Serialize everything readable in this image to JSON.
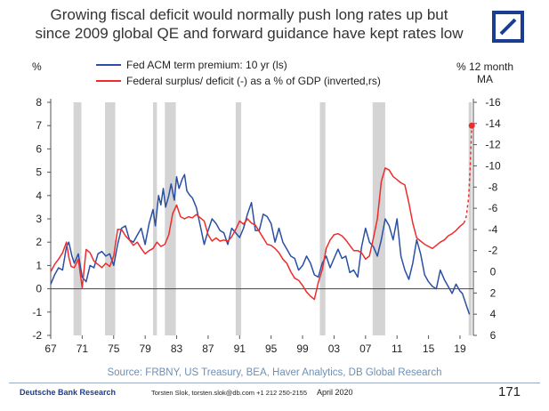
{
  "title_line1": "Growing fiscal deficit would normally push long rates up but",
  "title_line2": "since 2009 global QE and forward guidance have kept rates low",
  "logo_icon": "deutsche-bank-logo",
  "colors": {
    "blue": "#2b4fa3",
    "red": "#ef2b2b",
    "recession": "#d4d4d4",
    "logo": "#1a3d8f"
  },
  "source": "Source:  FRBNY, US Treasury, BEA, Haver Analytics, DB Global Research",
  "footer": {
    "brand": "Deutsche Bank Research",
    "contact": "Torsten Slok, torsten.slok@db.com  +1 212 250-2155",
    "date": "April 2020",
    "page": "171"
  },
  "chart_data": {
    "type": "line",
    "x_tick_labels": [
      "67",
      "71",
      "75",
      "79",
      "83",
      "87",
      "91",
      "95",
      "99",
      "03",
      "07",
      "11",
      "15",
      "19"
    ],
    "xlim": [
      1967,
      2020.7
    ],
    "left_axis": {
      "unit": "%",
      "ylim": [
        -2,
        8
      ],
      "ticks": [
        8,
        7,
        6,
        5,
        4,
        3,
        2,
        1,
        0,
        -1,
        -2
      ]
    },
    "right_axis": {
      "unit_line1": "% 12 month",
      "unit_line2": "MA",
      "inverted": true,
      "ylim": [
        6,
        -16
      ],
      "ticks": [
        -16,
        -14,
        -12,
        -10,
        -8,
        -6,
        -4,
        -2,
        0,
        2,
        4,
        6
      ]
    },
    "legend_position": "top",
    "recessions": [
      [
        1969.9,
        1970.9
      ],
      [
        1973.9,
        1975.2
      ],
      [
        1980.0,
        1980.5
      ],
      [
        1981.5,
        1982.9
      ],
      [
        1990.5,
        1991.2
      ],
      [
        2001.2,
        2001.9
      ],
      [
        2007.9,
        2009.5
      ],
      [
        2020.1,
        2020.5
      ]
    ],
    "series": [
      {
        "name": "Fed ACM term premium: 10 yr (ls)",
        "axis": "left",
        "color": "#2b4fa3",
        "x": [
          1967,
          1967.5,
          1968,
          1968.5,
          1969,
          1969.3,
          1969.7,
          1970,
          1970.5,
          1971,
          1971.5,
          1972,
          1972.5,
          1973,
          1973.5,
          1974,
          1974.5,
          1975,
          1975.5,
          1976,
          1976.5,
          1977,
          1977.5,
          1978,
          1978.5,
          1979,
          1979.5,
          1980,
          1980.3,
          1980.7,
          1981,
          1981.3,
          1981.6,
          1982,
          1982.3,
          1982.7,
          1983,
          1983.3,
          1983.7,
          1984,
          1984.3,
          1984.7,
          1985,
          1985.5,
          1986,
          1986.5,
          1987,
          1987.5,
          1988,
          1988.5,
          1989,
          1989.5,
          1990,
          1990.5,
          1991,
          1991.5,
          1992,
          1992.5,
          1993,
          1993.5,
          1994,
          1994.5,
          1995,
          1995.5,
          1996,
          1996.5,
          1997,
          1997.5,
          1998,
          1998.5,
          1999,
          1999.5,
          2000,
          2000.5,
          2001,
          2001.5,
          2002,
          2002.5,
          2003,
          2003.5,
          2004,
          2004.5,
          2005,
          2005.5,
          2006,
          2006.5,
          2007,
          2007.5,
          2008,
          2008.5,
          2009,
          2009.5,
          2010,
          2010.5,
          2011,
          2011.5,
          2012,
          2012.5,
          2013,
          2013.5,
          2014,
          2014.5,
          2015,
          2015.5,
          2016,
          2016.5,
          2017,
          2017.5,
          2018,
          2018.5,
          2019,
          2019.3,
          2019.6,
          2019.9,
          2020.2
        ],
        "values": [
          0.2,
          0.6,
          0.9,
          0.8,
          1.8,
          2.0,
          1.4,
          1.1,
          1.5,
          0.5,
          0.3,
          1.0,
          0.9,
          1.5,
          1.6,
          1.4,
          1.5,
          1.0,
          1.9,
          2.6,
          2.7,
          2.1,
          2.0,
          2.3,
          2.6,
          1.9,
          2.8,
          3.4,
          2.7,
          4.0,
          3.6,
          4.3,
          3.5,
          4.0,
          4.5,
          3.8,
          4.8,
          4.3,
          4.7,
          4.9,
          4.2,
          4.0,
          3.9,
          3.5,
          2.7,
          1.9,
          2.5,
          3.0,
          2.8,
          2.5,
          2.4,
          1.9,
          2.6,
          2.4,
          2.2,
          2.6,
          3.2,
          3.7,
          2.5,
          2.5,
          3.2,
          3.1,
          2.8,
          2.0,
          2.6,
          2.0,
          1.7,
          1.4,
          1.3,
          0.8,
          1.0,
          1.4,
          1.1,
          0.6,
          0.5,
          1.1,
          1.4,
          0.9,
          1.3,
          1.7,
          1.3,
          1.4,
          0.7,
          0.8,
          0.5,
          1.8,
          2.6,
          2.0,
          1.8,
          1.4,
          2.1,
          3.0,
          2.7,
          2.1,
          3.0,
          1.4,
          0.8,
          0.4,
          1.1,
          2.1,
          1.5,
          0.6,
          0.3,
          0.1,
          0.0,
          0.8,
          0.4,
          0.1,
          -0.2,
          0.2,
          -0.1,
          -0.2,
          -0.5,
          -0.8,
          -1.1
        ]
      },
      {
        "name": "Federal surplus/ deficit (-) as a % of GDP (inverted,rs)",
        "axis": "right",
        "color": "#ef2b2b",
        "x": [
          1967,
          1967.5,
          1968,
          1968.5,
          1969,
          1969.3,
          1969.6,
          1970,
          1970.5,
          1971,
          1971.5,
          1972,
          1972.5,
          1973,
          1973.5,
          1974,
          1974.5,
          1975,
          1975.5,
          1976,
          1976.5,
          1977,
          1977.5,
          1978,
          1978.5,
          1979,
          1979.5,
          1980,
          1980.5,
          1981,
          1981.5,
          1982,
          1982.5,
          1983,
          1983.5,
          1984,
          1984.5,
          1985,
          1985.5,
          1986,
          1986.5,
          1987,
          1987.5,
          1988,
          1988.5,
          1989,
          1989.5,
          1990,
          1990.5,
          1991,
          1991.5,
          1992,
          1992.5,
          1993,
          1993.5,
          1994,
          1994.5,
          1995,
          1995.5,
          1996,
          1996.5,
          1997,
          1997.5,
          1998,
          1998.5,
          1999,
          1999.5,
          2000,
          2000.5,
          2001,
          2001.5,
          2002,
          2002.5,
          2003,
          2003.5,
          2004,
          2004.5,
          2005,
          2005.5,
          2006,
          2006.5,
          2007,
          2007.5,
          2008,
          2008.5,
          2009,
          2009.5,
          2010,
          2010.5,
          2011,
          2011.5,
          2012,
          2012.5,
          2013,
          2013.5,
          2014,
          2014.5,
          2015,
          2015.5,
          2016,
          2016.5,
          2017,
          2017.5,
          2018,
          2018.5,
          2019,
          2019.5
        ],
        "values": [
          0,
          -0.7,
          -1.2,
          -1.8,
          -2.8,
          -1.4,
          -0.5,
          -0.4,
          -1.2,
          1.5,
          -2.1,
          -1.8,
          -1.0,
          -0.7,
          -0.4,
          -0.8,
          -0.5,
          -1.5,
          -4.0,
          -4.0,
          -3.4,
          -3.0,
          -2.5,
          -2.8,
          -2.2,
          -1.7,
          -2.0,
          -2.2,
          -2.8,
          -2.4,
          -2.6,
          -3.5,
          -5.5,
          -6.3,
          -5.2,
          -5.0,
          -5.2,
          -5.1,
          -5.4,
          -5.1,
          -4.8,
          -3.5,
          -2.9,
          -3.2,
          -2.9,
          -3.0,
          -2.9,
          -3.3,
          -4.0,
          -4.8,
          -4.5,
          -5.0,
          -4.6,
          -4.4,
          -3.8,
          -3.2,
          -2.6,
          -2.5,
          -2.2,
          -1.8,
          -1.2,
          -0.8,
          0.0,
          0.6,
          0.8,
          1.3,
          1.9,
          2.3,
          2.6,
          1.0,
          -0.2,
          -2.2,
          -3.0,
          -3.5,
          -3.6,
          -3.4,
          -3.0,
          -2.5,
          -2.0,
          -2.0,
          -1.8,
          -1.2,
          -1.5,
          -3.2,
          -5.0,
          -8.5,
          -9.8,
          -9.6,
          -9.0,
          -8.7,
          -8.4,
          -8.2,
          -6.5,
          -4.6,
          -3.2,
          -2.9,
          -2.6,
          -2.4,
          -2.2,
          -2.5,
          -2.8,
          -3.0,
          -3.4,
          -3.6,
          -3.9,
          -4.3,
          -4.6
        ]
      },
      {
        "name": "",
        "axis": "right",
        "style": "dashed",
        "color": "#ef2b2b",
        "x": [
          2019.5,
          2019.8,
          2020.1,
          2020.3,
          2020.5
        ],
        "values": [
          -4.6,
          -5.2,
          -7.0,
          -10.0,
          -13.8
        ]
      }
    ]
  }
}
